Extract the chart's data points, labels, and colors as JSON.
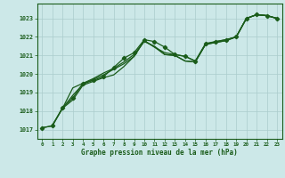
{
  "xlabel": "Graphe pression niveau de la mer (hPa)",
  "xlim": [
    -0.5,
    23.5
  ],
  "ylim": [
    1016.5,
    1023.8
  ],
  "yticks": [
    1017,
    1018,
    1019,
    1020,
    1021,
    1022,
    1023
  ],
  "xticks": [
    0,
    1,
    2,
    3,
    4,
    5,
    6,
    7,
    8,
    9,
    10,
    11,
    12,
    13,
    14,
    15,
    16,
    17,
    18,
    19,
    20,
    21,
    22,
    23
  ],
  "bg_color": "#cce8e8",
  "grid_color": "#aacccc",
  "line_color": "#1a5c1a",
  "line1_x": [
    0,
    1,
    2,
    3,
    4,
    5,
    6,
    7,
    8,
    9,
    10,
    11,
    12,
    13,
    14,
    15,
    16,
    17,
    18,
    19,
    20,
    21,
    22,
    23
  ],
  "line1_y": [
    1017.1,
    1017.2,
    1018.2,
    1018.7,
    1019.5,
    1019.65,
    1019.85,
    1020.35,
    1020.85,
    1021.15,
    1021.85,
    1021.75,
    1021.45,
    1021.05,
    1020.95,
    1020.7,
    1021.65,
    1021.75,
    1021.85,
    1022.0,
    1023.0,
    1023.2,
    1023.15,
    1023.0
  ],
  "line2_x": [
    0,
    1,
    2,
    3,
    4,
    5,
    6,
    7,
    8,
    9,
    10,
    11,
    12,
    13,
    14,
    15,
    16,
    17,
    18,
    19,
    20,
    21,
    22,
    23
  ],
  "line2_y": [
    1017.1,
    1017.2,
    1018.15,
    1018.85,
    1019.45,
    1019.7,
    1019.95,
    1020.25,
    1020.55,
    1020.95,
    1021.8,
    1021.45,
    1021.15,
    1021.05,
    1020.95,
    1020.7,
    1021.6,
    1021.75,
    1021.85,
    1022.0,
    1023.0,
    1023.2,
    1023.15,
    1023.0
  ],
  "line3_x": [
    1,
    2,
    3,
    4,
    5,
    6,
    7,
    8,
    9,
    10,
    11,
    12,
    13,
    14,
    15,
    16,
    17,
    18,
    19,
    20,
    21,
    22,
    23
  ],
  "line3_y": [
    1017.25,
    1018.15,
    1018.6,
    1019.4,
    1019.6,
    1019.8,
    1019.95,
    1020.4,
    1020.95,
    1021.8,
    1021.45,
    1021.05,
    1021.0,
    1020.7,
    1020.65,
    1021.6,
    1021.7,
    1021.8,
    1022.0,
    1023.0,
    1023.2,
    1023.15,
    1023.0
  ],
  "line4_x": [
    2,
    3,
    4,
    5,
    6,
    7,
    8,
    9,
    10,
    11,
    12,
    13,
    14,
    15,
    16,
    17,
    18,
    19,
    20,
    21,
    22,
    23
  ],
  "line4_y": [
    1018.15,
    1019.25,
    1019.5,
    1019.75,
    1020.05,
    1020.3,
    1020.65,
    1021.05,
    1021.75,
    1021.5,
    1021.05,
    1021.0,
    1020.7,
    1020.65,
    1021.6,
    1021.7,
    1021.8,
    1022.0,
    1023.0,
    1023.2,
    1023.15,
    1023.0
  ]
}
